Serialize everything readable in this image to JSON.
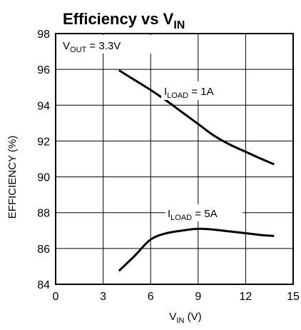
{
  "chart_data": {
    "type": "line",
    "title": {
      "main": "Efficiency vs V",
      "sub": "IN"
    },
    "xlabel": {
      "main": "V",
      "sub": "IN",
      "rest": " (V)"
    },
    "ylabel": "EFFICIENCY (%)",
    "xlim": [
      0,
      15
    ],
    "ylim": [
      84,
      98
    ],
    "xticks": [
      0,
      3,
      6,
      9,
      12,
      15
    ],
    "yticks": [
      84,
      86,
      88,
      90,
      92,
      94,
      96,
      98
    ],
    "grid": true,
    "condition": {
      "main": "V",
      "sub": "OUT",
      "rest": " = 3.3V"
    },
    "series": [
      {
        "name": {
          "main": "I",
          "sub": "LOAD",
          "rest": " = 1A"
        },
        "x": [
          4.0,
          5.0,
          6.0,
          7.0,
          8.0,
          9.0,
          10.0,
          11.0,
          12.0,
          13.0,
          13.8
        ],
        "y": [
          95.95,
          95.4,
          94.85,
          94.25,
          93.6,
          92.95,
          92.3,
          91.8,
          91.4,
          91.0,
          90.7
        ]
      },
      {
        "name": {
          "main": "I",
          "sub": "LOAD",
          "rest": " = 5A"
        },
        "x": [
          4.0,
          5.0,
          6.0,
          7.0,
          8.0,
          9.0,
          10.0,
          11.0,
          12.0,
          13.0,
          13.8
        ],
        "y": [
          84.75,
          85.6,
          86.5,
          86.85,
          87.0,
          87.1,
          87.05,
          86.95,
          86.85,
          86.75,
          86.7
        ]
      }
    ]
  }
}
